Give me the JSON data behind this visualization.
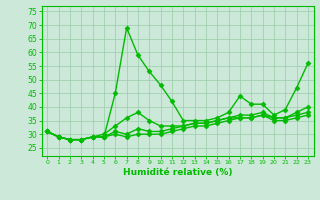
{
  "title": "",
  "xlabel": "Humidité relative (%)",
  "ylabel": "",
  "bg_color": "#cce8d8",
  "grid_color": "#99ccaa",
  "line_color": "#00bb00",
  "marker": "D",
  "markersize": 2.5,
  "linewidth": 1.0,
  "xlim": [
    -0.5,
    23.5
  ],
  "ylim": [
    22,
    77
  ],
  "yticks": [
    25,
    30,
    35,
    40,
    45,
    50,
    55,
    60,
    65,
    70,
    75
  ],
  "xticks": [
    0,
    1,
    2,
    3,
    4,
    5,
    6,
    7,
    8,
    9,
    10,
    11,
    12,
    13,
    14,
    15,
    16,
    17,
    18,
    19,
    20,
    21,
    22,
    23
  ],
  "series": [
    [
      31,
      29,
      28,
      28,
      29,
      29,
      45,
      69,
      59,
      53,
      48,
      42,
      35,
      35,
      35,
      36,
      38,
      44,
      41,
      41,
      37,
      39,
      47,
      56
    ],
    [
      31,
      29,
      28,
      28,
      29,
      30,
      33,
      36,
      38,
      35,
      33,
      33,
      33,
      34,
      34,
      35,
      36,
      36,
      36,
      37,
      36,
      36,
      38,
      40
    ],
    [
      31,
      29,
      28,
      28,
      29,
      29,
      31,
      30,
      32,
      31,
      31,
      32,
      33,
      34,
      34,
      35,
      36,
      37,
      37,
      38,
      36,
      36,
      37,
      38
    ],
    [
      31,
      29,
      28,
      28,
      29,
      29,
      30,
      29,
      30,
      30,
      30,
      31,
      32,
      33,
      33,
      34,
      35,
      36,
      36,
      37,
      35,
      35,
      36,
      37
    ]
  ]
}
